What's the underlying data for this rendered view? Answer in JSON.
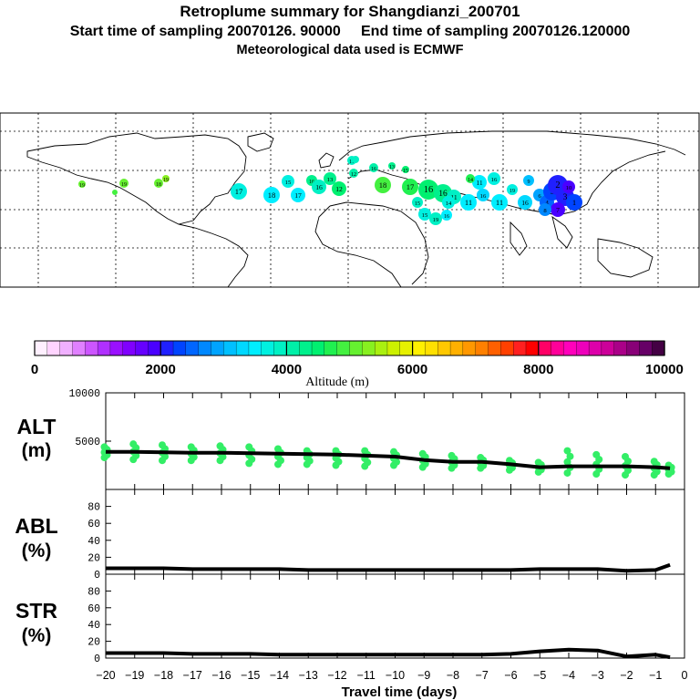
{
  "title": "Retroplume summary for Shangdianzi_200701",
  "subtitle_start": "Start time of sampling 20070126. 90000",
  "subtitle_end": "End time of sampling 20070126.120000",
  "met_data": "Meteorological data used is ECMWF",
  "colorbar": {
    "label": "Altitude (m)",
    "ticks": [
      0,
      2000,
      4000,
      6000,
      8000,
      10000
    ],
    "range": [
      0,
      10000
    ]
  },
  "map_labels": {
    "blue": [
      "1",
      "2",
      "3",
      "4",
      "5",
      "6",
      "7",
      "8",
      "9",
      "10"
    ],
    "teal": [
      "11",
      "12",
      "13",
      "14",
      "15",
      "16",
      "17",
      "18",
      "19"
    ],
    "green": [
      "14",
      "15",
      "16",
      "17",
      "18",
      "19",
      "20"
    ]
  },
  "chart_data": {
    "type": "line",
    "x": [
      -20,
      -19,
      -18,
      -17,
      -16,
      -15,
      -14,
      -13,
      -12,
      -11,
      -10,
      -9,
      -8,
      -7,
      -6,
      -5,
      -4,
      -3,
      -2,
      -1,
      -0.5
    ],
    "xlabel": "Travel time (days)",
    "xlim": [
      -20,
      0
    ],
    "xticks": [
      "−20",
      "−19",
      "−18",
      "−17",
      "−16",
      "−15",
      "−14",
      "−13",
      "−12",
      "−11",
      "−10",
      "−9",
      "−8",
      "−7",
      "−6",
      "−5",
      "−4",
      "−3",
      "−2",
      "−1",
      "0"
    ],
    "panels": [
      {
        "name": "ALT",
        "unit": "(m)",
        "ylim": [
          0,
          10000
        ],
        "yticks": [
          5000,
          10000
        ],
        "series": [
          {
            "name": "mean altitude",
            "values": [
              3900,
              3900,
              3850,
              3800,
              3800,
              3750,
              3700,
              3650,
              3600,
              3500,
              3400,
              3050,
              2850,
              2850,
              2600,
              2300,
              2400,
              2400,
              2400,
              2300,
              2200
            ]
          }
        ],
        "scatter": {
          "name": "plume altitude",
          "ranges": [
            [
              3300,
              4400
            ],
            [
              3100,
              4700
            ],
            [
              3000,
              4600
            ],
            [
              3000,
              4400
            ],
            [
              3000,
              4500
            ],
            [
              2700,
              4400
            ],
            [
              2600,
              4200
            ],
            [
              2600,
              4000
            ],
            [
              2500,
              4000
            ],
            [
              2400,
              4000
            ],
            [
              2500,
              3900
            ],
            [
              2300,
              3700
            ],
            [
              2200,
              3500
            ],
            [
              2200,
              3300
            ],
            [
              2000,
              3000
            ],
            [
              1800,
              2800
            ],
            [
              1700,
              4000
            ],
            [
              1600,
              3600
            ],
            [
              1500,
              3400
            ],
            [
              1500,
              2900
            ],
            [
              1600,
              2500
            ]
          ]
        }
      },
      {
        "name": "ABL",
        "unit": "(%)",
        "ylim": [
          0,
          100
        ],
        "yticks": [
          0,
          20,
          40,
          60,
          80
        ],
        "series": [
          {
            "name": "ABL fraction",
            "values": [
              7,
              7,
              7,
              6,
              6,
              6,
              6,
              5,
              5,
              5,
              5,
              5,
              5,
              5,
              5,
              6,
              6,
              6,
              4,
              5,
              11
            ]
          }
        ]
      },
      {
        "name": "STR",
        "unit": "(%)",
        "ylim": [
          0,
          100
        ],
        "yticks": [
          0,
          20,
          40,
          60,
          80
        ],
        "series": [
          {
            "name": "STR fraction",
            "values": [
              6,
              6,
              6,
              5,
              5,
              5,
              4,
              4,
              4,
              4,
              4,
              4,
              4,
              4,
              5,
              8,
              10,
              9,
              2,
              4,
              1
            ]
          }
        ]
      }
    ]
  }
}
